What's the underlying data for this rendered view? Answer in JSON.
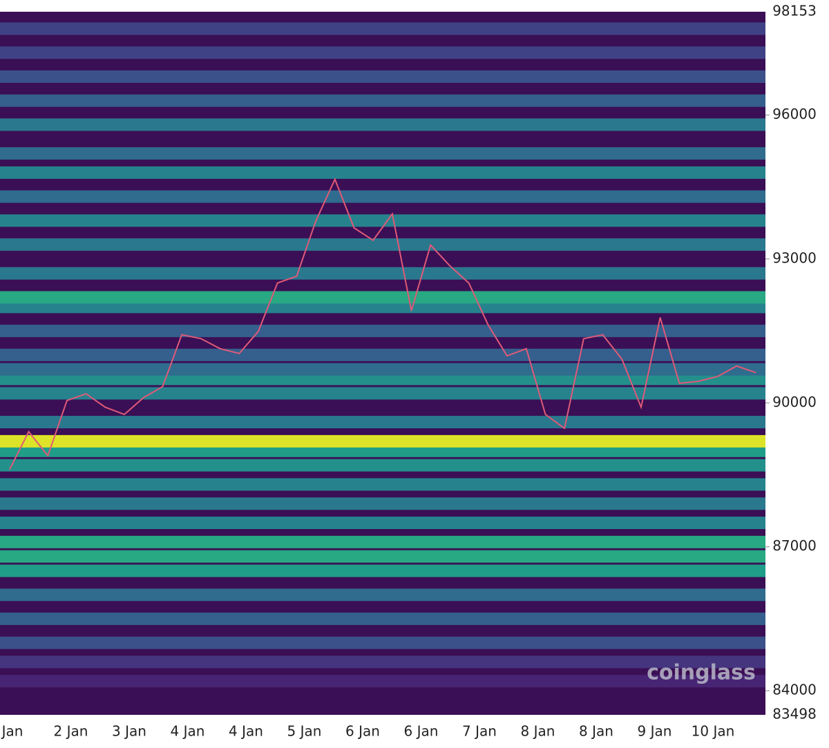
{
  "chart_data": {
    "type": "heatmap",
    "ylim": [
      83498,
      98153
    ],
    "yticks": [
      84000,
      87000,
      90000,
      93000,
      96000
    ],
    "categories": [
      "Jan",
      "2 Jan",
      "3 Jan",
      "4 Jan",
      "4 Jan",
      "5 Jan",
      "6 Jan",
      "6 Jan",
      "7 Jan",
      "8 Jan",
      "8 Jan",
      "9 Jan",
      "10 Jan"
    ],
    "levels": {
      "prices": [
        84200,
        84600,
        85000,
        85500,
        86000,
        86500,
        86800,
        87100,
        87500,
        87900,
        88300,
        88700,
        89000,
        89200,
        89600,
        90200,
        90500,
        90700,
        91000,
        91500,
        92000,
        92200,
        92700,
        93300,
        93800,
        94300,
        94800,
        95200,
        95800,
        96300,
        96800,
        97300,
        97800
      ],
      "intensity": [
        0.1,
        0.15,
        0.25,
        0.3,
        0.35,
        0.55,
        0.6,
        0.6,
        0.45,
        0.4,
        0.45,
        0.5,
        0.55,
        0.95,
        0.4,
        0.45,
        0.5,
        0.35,
        0.3,
        0.3,
        0.45,
        0.6,
        0.4,
        0.4,
        0.45,
        0.35,
        0.45,
        0.35,
        0.4,
        0.3,
        0.25,
        0.2,
        0.2
      ]
    },
    "price": {
      "color": "#e05a78",
      "values": [
        88610,
        89400,
        88900,
        90050,
        90190,
        89910,
        89760,
        90110,
        90340,
        91420,
        91340,
        91130,
        91030,
        91490,
        92500,
        92640,
        93790,
        94660,
        93650,
        93390,
        93940,
        91920,
        93290,
        92860,
        92500,
        91630,
        90980,
        91130,
        89760,
        89470,
        91340,
        91420,
        90910,
        89910,
        91780,
        90410,
        90450,
        90550,
        90770,
        90630
      ]
    },
    "watermark": "coinglass"
  }
}
